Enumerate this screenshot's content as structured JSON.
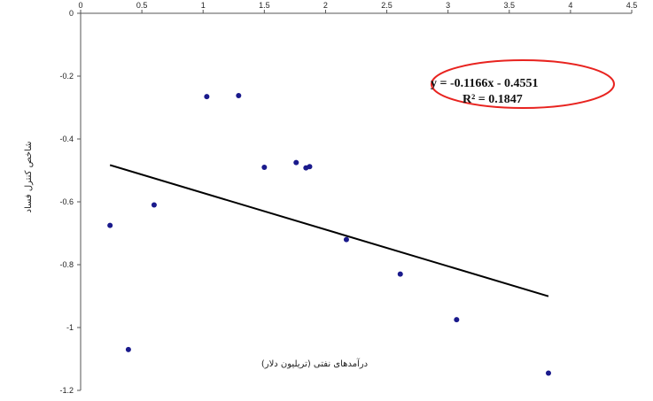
{
  "chart_data": {
    "type": "scatter",
    "title": "",
    "xlabel": "درآمدهای نفتی (تریلیون دلار)",
    "ylabel": "شاخص کنترل فساد",
    "xlim": [
      0,
      4.5
    ],
    "ylim": [
      -1.2,
      0
    ],
    "x_ticks": [
      0,
      0.5,
      1,
      1.5,
      2,
      2.5,
      3,
      3.5,
      4,
      4.5
    ],
    "x_tick_labels": [
      "0",
      "0.5",
      "1",
      "1.5",
      "2",
      "2.5",
      "3",
      "3.5",
      "4",
      "4.5"
    ],
    "y_ticks": [
      0,
      -0.2,
      -0.4,
      -0.6,
      -0.8,
      -1,
      -1.2
    ],
    "y_tick_labels": [
      "0",
      "-0.2",
      "-0.4",
      "-0.6",
      "-0.8",
      "-1",
      "-1.2"
    ],
    "grid": false,
    "series": [
      {
        "color": "#1a1a8c",
        "points": [
          {
            "x": 0.24,
            "y": -0.675
          },
          {
            "x": 0.39,
            "y": -1.07
          },
          {
            "x": 0.6,
            "y": -0.61
          },
          {
            "x": 1.03,
            "y": -0.265
          },
          {
            "x": 1.29,
            "y": -0.262
          },
          {
            "x": 1.5,
            "y": -0.49
          },
          {
            "x": 1.76,
            "y": -0.475
          },
          {
            "x": 1.84,
            "y": -0.492
          },
          {
            "x": 1.87,
            "y": -0.488
          },
          {
            "x": 2.17,
            "y": -0.72
          },
          {
            "x": 2.61,
            "y": -0.83
          },
          {
            "x": 3.07,
            "y": -0.975
          },
          {
            "x": 3.82,
            "y": -1.145
          }
        ]
      }
    ],
    "trendline": {
      "slope": -0.1166,
      "intercept": -0.4551,
      "x_range": [
        0.24,
        3.82
      ],
      "color": "#000000"
    },
    "annotation": {
      "equation": "y = -0.1166x - 0.4551",
      "r_squared": "R² = 0.1847",
      "highlight_color": "#e8231f"
    }
  }
}
